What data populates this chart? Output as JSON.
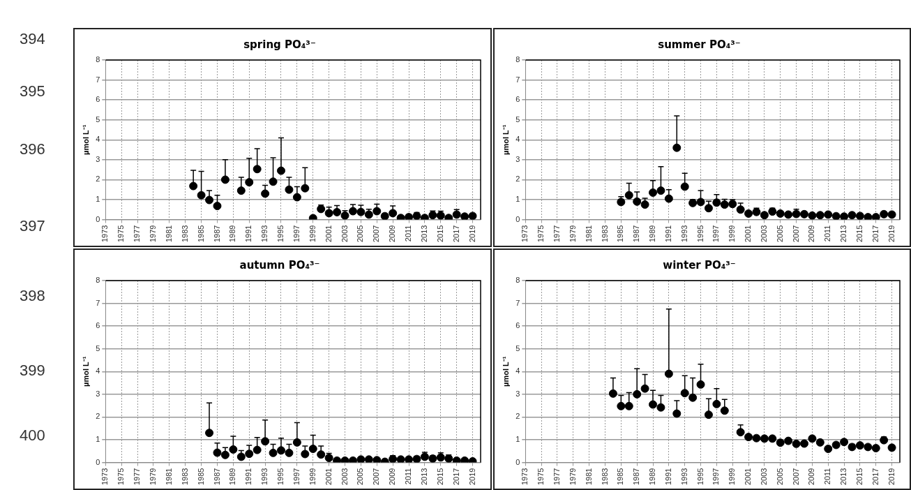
{
  "chart_data": [
    {
      "type": "scatter",
      "title": "spring PO₄³⁻",
      "ylabel": "µmol L⁻¹",
      "color": "#000000",
      "marker": "circle",
      "grid": true,
      "xlim": [
        1973,
        2020
      ],
      "xticks": [
        1973,
        1975,
        1977,
        1979,
        1981,
        1983,
        1985,
        1987,
        1989,
        1991,
        1993,
        1995,
        1997,
        1999,
        2001,
        2003,
        2005,
        2007,
        2009,
        2011,
        2013,
        2015,
        2017,
        2019
      ],
      "ylim": [
        0,
        8
      ],
      "yticks": [
        0,
        1,
        2,
        3,
        4,
        5,
        6,
        7,
        8
      ],
      "annotations": [
        "394",
        "395",
        "396",
        "397",
        "398",
        "399",
        "400"
      ],
      "x": [
        1984,
        1985,
        1986,
        1987,
        1988,
        1990,
        1991,
        1992,
        1993,
        1994,
        1995,
        1996,
        1997,
        1998,
        1999,
        2000,
        2001,
        2002,
        2003,
        2004,
        2005,
        2006,
        2007,
        2008,
        2009,
        2010,
        2011,
        2012,
        2013,
        2014,
        2015,
        2016,
        2017,
        2018,
        2019
      ],
      "values": [
        1.68,
        1.22,
        0.98,
        0.68,
        2.0,
        1.45,
        1.87,
        2.53,
        1.3,
        1.9,
        2.45,
        1.5,
        1.12,
        1.57,
        0.07,
        0.53,
        0.32,
        0.37,
        0.2,
        0.42,
        0.38,
        0.25,
        0.42,
        0.17,
        0.32,
        0.08,
        0.12,
        0.18,
        0.08,
        0.22,
        0.2,
        0.08,
        0.25,
        0.15,
        0.18
      ],
      "errors": [
        [
          1.68,
          2.47
        ],
        [
          1.22,
          2.42
        ],
        [
          0.98,
          1.45
        ],
        [
          0.68,
          1.22
        ],
        [
          2.0,
          3.0
        ],
        [
          1.45,
          2.12
        ],
        [
          1.87,
          3.07
        ],
        [
          2.53,
          3.55
        ],
        [
          1.3,
          1.72
        ],
        [
          1.9,
          3.1
        ],
        [
          2.45,
          4.1
        ],
        [
          1.5,
          2.12
        ],
        [
          1.12,
          1.65
        ],
        [
          1.57,
          2.6
        ],
        null,
        [
          0.53,
          0.73
        ],
        [
          0.32,
          0.62
        ],
        [
          0.37,
          0.7
        ],
        [
          0.2,
          0.45
        ],
        [
          0.42,
          0.75
        ],
        [
          0.38,
          0.72
        ],
        [
          0.25,
          0.52
        ],
        [
          0.42,
          0.77
        ],
        [
          0.17,
          0.3
        ],
        [
          0.32,
          0.68
        ],
        [
          0.08,
          0.2
        ],
        [
          0.12,
          0.25
        ],
        [
          0.18,
          0.35
        ],
        null,
        [
          0.22,
          0.43
        ],
        [
          0.2,
          0.42
        ],
        null,
        [
          0.25,
          0.5
        ],
        [
          0.15,
          0.25
        ],
        [
          0.18,
          0.28
        ]
      ]
    },
    {
      "type": "scatter",
      "title": "summer PO₄³⁻",
      "ylabel": "µmol L⁻¹",
      "color": "#000000",
      "marker": "circle",
      "grid": true,
      "xlim": [
        1973,
        2020
      ],
      "xticks": [
        1973,
        1975,
        1977,
        1979,
        1981,
        1983,
        1985,
        1987,
        1989,
        1991,
        1993,
        1995,
        1997,
        1999,
        2001,
        2003,
        2005,
        2007,
        2009,
        2011,
        2013,
        2015,
        2017,
        2019
      ],
      "ylim": [
        0,
        8
      ],
      "yticks": [
        0,
        1,
        2,
        3,
        4,
        5,
        6,
        7,
        8
      ],
      "x": [
        1985,
        1986,
        1987,
        1988,
        1989,
        1990,
        1991,
        1992,
        1993,
        1994,
        1995,
        1996,
        1997,
        1998,
        1999,
        2000,
        2001,
        2002,
        2003,
        2004,
        2005,
        2006,
        2007,
        2008,
        2009,
        2010,
        2011,
        2012,
        2013,
        2014,
        2015,
        2016,
        2017,
        2018,
        2019
      ],
      "values": [
        0.88,
        1.22,
        0.9,
        0.75,
        1.35,
        1.45,
        1.05,
        3.6,
        1.65,
        0.83,
        0.88,
        0.57,
        0.85,
        0.75,
        0.78,
        0.5,
        0.3,
        0.38,
        0.22,
        0.4,
        0.3,
        0.25,
        0.28,
        0.27,
        0.2,
        0.22,
        0.25,
        0.17,
        0.15,
        0.22,
        0.18,
        0.12,
        0.12,
        0.27,
        0.25
      ],
      "errors": [
        [
          0.88,
          1.15
        ],
        [
          1.22,
          1.82
        ],
        [
          0.9,
          1.38
        ],
        [
          0.75,
          1.07
        ],
        [
          1.35,
          1.95
        ],
        [
          1.45,
          2.65
        ],
        [
          1.05,
          1.5
        ],
        [
          3.6,
          5.2
        ],
        [
          1.65,
          2.32
        ],
        [
          0.83,
          1.0
        ],
        [
          0.88,
          1.45
        ],
        [
          0.57,
          0.92
        ],
        [
          0.85,
          1.25
        ],
        [
          0.75,
          1.02
        ],
        [
          0.78,
          1.0
        ],
        [
          0.5,
          0.82
        ],
        null,
        [
          0.38,
          0.57
        ],
        null,
        [
          0.4,
          0.57
        ],
        null,
        null,
        [
          0.28,
          0.52
        ],
        null,
        null,
        null,
        null,
        null,
        null,
        null,
        null,
        null,
        null,
        null,
        null
      ]
    },
    {
      "type": "scatter",
      "title": "autumn PO₄³⁻",
      "ylabel": "µmol L⁻¹",
      "color": "#000000",
      "marker": "circle",
      "grid": true,
      "xlim": [
        1973,
        2020
      ],
      "xticks": [
        1973,
        1975,
        1977,
        1979,
        1981,
        1983,
        1985,
        1987,
        1989,
        1991,
        1993,
        1995,
        1997,
        1999,
        2001,
        2003,
        2005,
        2007,
        2009,
        2011,
        2013,
        2015,
        2017,
        2019
      ],
      "ylim": [
        0,
        8
      ],
      "yticks": [
        0,
        1,
        2,
        3,
        4,
        5,
        6,
        7,
        8
      ],
      "x": [
        1986,
        1987,
        1988,
        1989,
        1990,
        1991,
        1992,
        1993,
        1994,
        1995,
        1996,
        1997,
        1998,
        1999,
        2000,
        2001,
        2002,
        2003,
        2004,
        2005,
        2006,
        2007,
        2008,
        2009,
        2010,
        2011,
        2012,
        2013,
        2014,
        2015,
        2016,
        2017,
        2018,
        2019
      ],
      "values": [
        1.3,
        0.43,
        0.33,
        0.57,
        0.25,
        0.38,
        0.55,
        0.93,
        0.42,
        0.53,
        0.42,
        0.88,
        0.37,
        0.6,
        0.35,
        0.2,
        0.08,
        0.08,
        0.08,
        0.13,
        0.13,
        0.1,
        0.03,
        0.15,
        0.13,
        0.13,
        0.15,
        0.25,
        0.17,
        0.22,
        0.17,
        0.08,
        0.08,
        0.05
      ],
      "errors": [
        [
          1.3,
          2.62
        ],
        [
          0.43,
          0.85
        ],
        [
          0.33,
          0.65
        ],
        [
          0.57,
          1.15
        ],
        [
          0.25,
          0.52
        ],
        [
          0.38,
          0.75
        ],
        [
          0.55,
          1.1
        ],
        [
          0.93,
          1.87
        ],
        [
          0.42,
          0.8
        ],
        [
          0.53,
          1.07
        ],
        [
          0.42,
          0.8
        ],
        [
          0.88,
          1.75
        ],
        [
          0.37,
          0.72
        ],
        [
          0.6,
          1.2
        ],
        [
          0.35,
          0.72
        ],
        [
          0.2,
          0.4
        ],
        null,
        null,
        null,
        [
          0.13,
          0.22
        ],
        null,
        null,
        null,
        [
          0.15,
          0.3
        ],
        null,
        null,
        [
          0.15,
          0.27
        ],
        [
          0.25,
          0.45
        ],
        [
          0.17,
          0.3
        ],
        [
          0.22,
          0.42
        ],
        [
          0.17,
          0.33
        ],
        null,
        null,
        null
      ]
    },
    {
      "type": "scatter",
      "title": "winter PO₄³⁻",
      "ylabel": "µmol L⁻¹",
      "color": "#000000",
      "marker": "circle",
      "grid": true,
      "xlim": [
        1973,
        2020
      ],
      "xticks": [
        1973,
        1975,
        1977,
        1979,
        1981,
        1983,
        1985,
        1987,
        1989,
        1991,
        1993,
        1995,
        1997,
        1999,
        2001,
        2003,
        2005,
        2007,
        2009,
        2011,
        2013,
        2015,
        2017,
        2019
      ],
      "ylim": [
        0,
        8
      ],
      "yticks": [
        0,
        1,
        2,
        3,
        4,
        5,
        6,
        7,
        8
      ],
      "x": [
        1984,
        1985,
        1986,
        1987,
        1988,
        1989,
        1990,
        1991,
        1992,
        1993,
        1994,
        1995,
        1996,
        1997,
        1998,
        2000,
        2001,
        2002,
        2003,
        2004,
        2005,
        2006,
        2007,
        2008,
        2009,
        2010,
        2011,
        2012,
        2013,
        2014,
        2015,
        2016,
        2017,
        2018,
        2019
      ],
      "values": [
        3.03,
        2.48,
        2.48,
        3.0,
        3.25,
        2.55,
        2.42,
        3.9,
        2.15,
        3.05,
        2.85,
        3.43,
        2.1,
        2.57,
        2.28,
        1.33,
        1.12,
        1.07,
        1.05,
        1.05,
        0.87,
        0.95,
        0.82,
        0.83,
        1.05,
        0.88,
        0.6,
        0.77,
        0.9,
        0.68,
        0.75,
        0.68,
        0.63,
        0.98,
        0.65
      ],
      "errors": [
        [
          3.03,
          3.72
        ],
        [
          2.48,
          2.95
        ],
        [
          2.48,
          3.07
        ],
        [
          3.0,
          4.12
        ],
        [
          3.25,
          3.87
        ],
        [
          2.55,
          3.17
        ],
        [
          2.42,
          2.95
        ],
        [
          3.9,
          6.75
        ],
        [
          2.15,
          2.72
        ],
        [
          3.05,
          3.82
        ],
        [
          2.85,
          3.72
        ],
        [
          3.43,
          4.32
        ],
        [
          2.1,
          2.8
        ],
        [
          2.57,
          3.25
        ],
        [
          2.28,
          2.77
        ],
        [
          1.33,
          1.65
        ],
        null,
        null,
        null,
        null,
        null,
        null,
        null,
        null,
        null,
        null,
        null,
        null,
        null,
        [
          0.68,
          0.8
        ],
        null,
        null,
        null,
        [
          0.98,
          1.12
        ],
        null
      ]
    }
  ]
}
